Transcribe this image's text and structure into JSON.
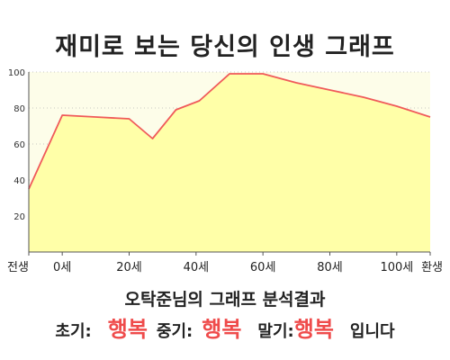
{
  "title": "재미로 보는 당신의 인생 그래프",
  "analysis_title": "오탁준님의 그래프 분석결과",
  "results": {
    "early_label": "초기:",
    "early_value": "행복",
    "middle_label": "중기:",
    "middle_value": "행복",
    "late_label": "말기:",
    "late_value": "행복",
    "suffix": "입니다"
  },
  "colors": {
    "line": "#f05a5a",
    "area": "#ffffa8",
    "plot_bg": "#fdfde9",
    "grid": "#b8b8b8",
    "highlight": "#ef4b4b"
  },
  "chart_data": {
    "type": "area",
    "title": "",
    "xlabel": "",
    "ylabel": "",
    "ylim": [
      0,
      100
    ],
    "xlim": [
      -10,
      110
    ],
    "x_ticks": [
      -10,
      0,
      20,
      40,
      60,
      80,
      100,
      110
    ],
    "x_tick_labels": [
      "전생",
      "0세",
      "20세",
      "40세",
      "60세",
      "80세",
      "100세",
      "환생"
    ],
    "y_ticks": [
      20,
      40,
      60,
      80,
      100
    ],
    "y_tick_labels": [
      "20",
      "40",
      "60",
      "80",
      "100"
    ],
    "grid": true,
    "x": [
      -10,
      0,
      10,
      20,
      27,
      34,
      41,
      50,
      60,
      70,
      80,
      90,
      100,
      110
    ],
    "values": [
      35,
      76,
      75,
      74,
      63,
      79,
      84,
      99,
      99,
      94,
      90,
      86,
      81,
      75
    ]
  }
}
